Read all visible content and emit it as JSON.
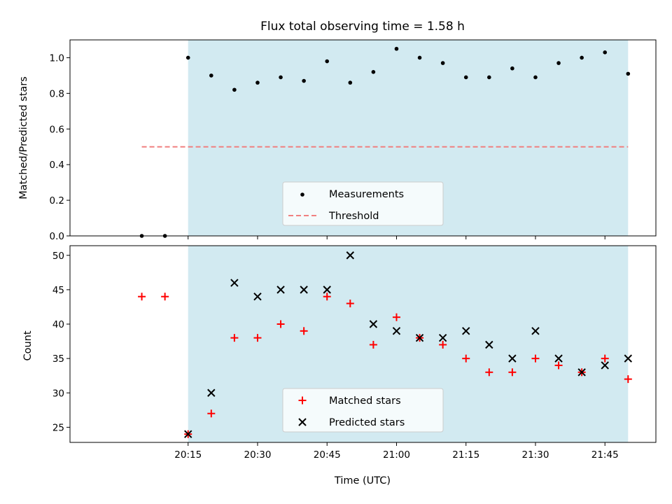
{
  "chart_data": [
    {
      "type": "scatter",
      "title": "Flux total observing time = 1.58 h",
      "xlabel": "",
      "ylabel": "Matched/Predicted stars",
      "ylim": [
        0,
        1.1
      ],
      "yticks": [
        "0.0",
        "0.2",
        "0.4",
        "0.6",
        "0.8",
        "1.0"
      ],
      "shaded_region": {
        "from": "20:15",
        "to": "21:50",
        "color": "#add8e6"
      },
      "legend": {
        "placement": "bottom-center",
        "entries": [
          "Measurements",
          "Threshold"
        ]
      },
      "series": [
        {
          "name": "Measurements",
          "color": "#000000",
          "x": [
            "20:05",
            "20:10",
            "20:15",
            "20:20",
            "20:25",
            "20:30",
            "20:35",
            "20:40",
            "20:45",
            "20:50",
            "20:55",
            "21:00",
            "21:05",
            "21:10",
            "21:15",
            "21:20",
            "21:25",
            "21:30",
            "21:35",
            "21:40",
            "21:45",
            "21:50"
          ],
          "values": [
            0.0,
            0.0,
            1.0,
            0.9,
            0.82,
            0.86,
            0.89,
            0.87,
            0.98,
            0.86,
            0.92,
            1.05,
            1.0,
            0.97,
            0.89,
            0.89,
            0.94,
            0.89,
            0.97,
            1.0,
            1.03,
            0.91
          ]
        },
        {
          "name": "Threshold",
          "color": "#f08080",
          "x": [
            "20:05",
            "21:50"
          ],
          "values": [
            0.5,
            0.5
          ]
        }
      ]
    },
    {
      "type": "scatter",
      "title": "",
      "xlabel": "Time (UTC)",
      "ylabel": "Count",
      "ylim": [
        22.8,
        51.4
      ],
      "yticks": [
        "25",
        "30",
        "35",
        "40",
        "45",
        "50"
      ],
      "xticks": [
        "20:15",
        "20:30",
        "20:45",
        "21:00",
        "21:15",
        "21:30",
        "21:45"
      ],
      "shaded_region": {
        "from": "20:15",
        "to": "21:50",
        "color": "#add8e6"
      },
      "legend": {
        "placement": "bottom-center",
        "entries": [
          "Matched stars",
          "Predicted stars"
        ]
      },
      "series": [
        {
          "name": "Matched stars",
          "color": "#ff0000",
          "marker": "plus",
          "x": [
            "20:05",
            "20:10",
            "20:15",
            "20:20",
            "20:25",
            "20:30",
            "20:35",
            "20:40",
            "20:45",
            "20:50",
            "20:55",
            "21:00",
            "21:05",
            "21:10",
            "21:15",
            "21:20",
            "21:25",
            "21:30",
            "21:35",
            "21:40",
            "21:45",
            "21:50"
          ],
          "values": [
            44,
            44,
            24,
            27,
            38,
            38,
            40,
            39,
            44,
            43,
            37,
            41,
            38,
            37,
            35,
            33,
            33,
            35,
            34,
            33,
            35,
            32
          ]
        },
        {
          "name": "Predicted stars",
          "color": "#000000",
          "marker": "x",
          "x": [
            "20:15",
            "20:20",
            "20:25",
            "20:30",
            "20:35",
            "20:40",
            "20:45",
            "20:50",
            "20:55",
            "21:00",
            "21:05",
            "21:10",
            "21:15",
            "21:20",
            "21:25",
            "21:30",
            "21:35",
            "21:40",
            "21:45",
            "21:50"
          ],
          "values": [
            24,
            30,
            46,
            44,
            45,
            45,
            45,
            50,
            40,
            39,
            38,
            38,
            39,
            37,
            35,
            39,
            35,
            33,
            34,
            35
          ]
        }
      ]
    }
  ]
}
